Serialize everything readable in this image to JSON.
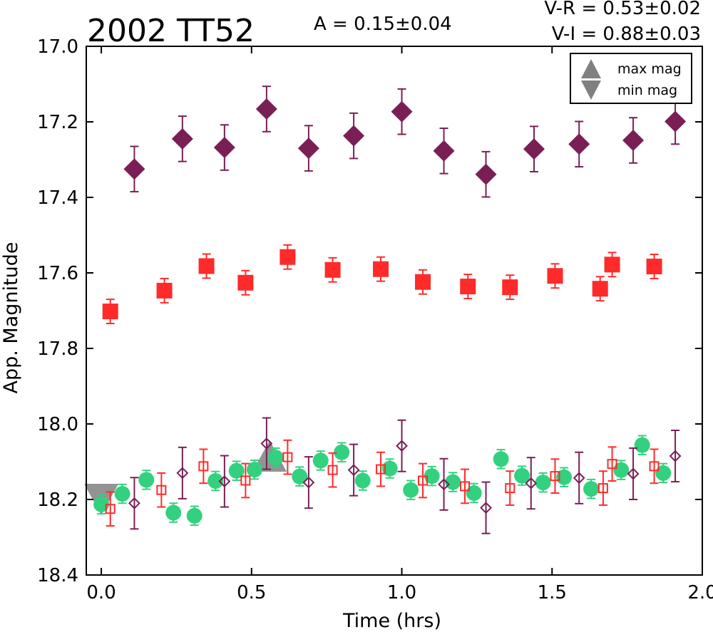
{
  "chart_data": {
    "type": "scatter",
    "title": "2002 TT52",
    "annotations": {
      "amplitude": "A  = 0.15±0.04",
      "v_r": "V-R = 0.53±0.02",
      "v_i": "V-I  = 0.88±0.03"
    },
    "xlabel": "Time (hrs)",
    "ylabel": "App. Magnitude",
    "xlim": [
      -0.05,
      2.0
    ],
    "ylim": [
      18.4,
      17.0
    ],
    "y_inverted": true,
    "grid": false,
    "xticks": [
      "0.0",
      "0.5",
      "1.0",
      "1.5",
      "2.0"
    ],
    "xtick_values": [
      0.0,
      0.5,
      1.0,
      1.5,
      2.0
    ],
    "yticks": [
      "17.0",
      "17.2",
      "17.4",
      "17.6",
      "17.8",
      "18.0",
      "18.2",
      "18.4"
    ],
    "ytick_values": [
      17.0,
      17.2,
      17.4,
      17.6,
      17.8,
      18.0,
      18.2,
      18.4
    ],
    "legend": {
      "placement": "top-right",
      "entries": [
        {
          "label": "max mag",
          "marker": "triangle-up",
          "color": "#808080"
        },
        {
          "label": "min mag",
          "marker": "triangle-down",
          "color": "#808080"
        }
      ]
    },
    "series": [
      {
        "marker": "diamond-filled",
        "color": "#7a1f56",
        "x": [
          0.11,
          0.27,
          0.41,
          0.55,
          0.69,
          0.84,
          1.0,
          1.14,
          1.28,
          1.44,
          1.59,
          1.77,
          1.91
        ],
        "y": [
          17.325,
          17.245,
          17.268,
          17.166,
          17.27,
          17.237,
          17.173,
          17.277,
          17.339,
          17.272,
          17.259,
          17.249,
          17.199
        ],
        "err": 0.06
      },
      {
        "marker": "square-filled",
        "color": "#ff2a2a",
        "x": [
          0.03,
          0.21,
          0.35,
          0.48,
          0.62,
          0.77,
          0.93,
          1.07,
          1.22,
          1.36,
          1.51,
          1.66,
          1.7,
          1.84
        ],
        "y": [
          17.702,
          17.647,
          17.582,
          17.626,
          17.558,
          17.592,
          17.59,
          17.624,
          17.636,
          17.638,
          17.608,
          17.642,
          17.578,
          17.583
        ],
        "err": 0.032
      },
      {
        "marker": "circle-filled",
        "color": "#33d17f",
        "x": [
          0.0,
          0.07,
          0.15,
          0.24,
          0.31,
          0.38,
          0.45,
          0.51,
          0.58,
          0.66,
          0.73,
          0.8,
          0.87,
          0.96,
          1.03,
          1.1,
          1.17,
          1.24,
          1.33,
          1.4,
          1.47,
          1.54,
          1.63,
          1.73,
          1.8,
          1.87
        ],
        "y": [
          18.213,
          18.185,
          18.148,
          18.235,
          18.243,
          18.151,
          18.124,
          18.121,
          18.089,
          18.139,
          18.097,
          18.075,
          18.15,
          18.118,
          18.175,
          18.138,
          18.154,
          18.183,
          18.093,
          18.137,
          18.155,
          18.141,
          18.172,
          18.122,
          18.056,
          18.13
        ],
        "err": 0.025
      },
      {
        "marker": "square-open",
        "color": "#ff2a2a",
        "x": [
          0.03,
          0.2,
          0.34,
          0.48,
          0.62,
          0.77,
          0.93,
          1.07,
          1.21,
          1.36,
          1.51,
          1.67,
          1.7,
          1.84
        ],
        "y": [
          18.225,
          18.175,
          18.112,
          18.15,
          18.088,
          18.122,
          18.12,
          18.15,
          18.165,
          18.17,
          18.138,
          18.17,
          18.106,
          18.112
        ],
        "err": 0.045
      },
      {
        "marker": "diamond-open",
        "color": "#7a1f56",
        "x": [
          0.11,
          0.27,
          0.41,
          0.55,
          0.69,
          0.84,
          1.0,
          1.14,
          1.28,
          1.43,
          1.59,
          1.77,
          1.91
        ],
        "y": [
          18.21,
          18.13,
          18.152,
          18.052,
          18.155,
          18.122,
          18.058,
          18.16,
          18.222,
          18.157,
          18.143,
          18.132,
          18.085
        ],
        "err": 0.068
      }
    ],
    "extrema": [
      {
        "label": "max mag",
        "marker": "triangle-up",
        "color": "#808080",
        "x": 0.56,
        "y": 18.085
      },
      {
        "label": "min mag",
        "marker": "triangle-down",
        "color": "#808080",
        "x": 0.0,
        "y": 18.2
      }
    ]
  }
}
